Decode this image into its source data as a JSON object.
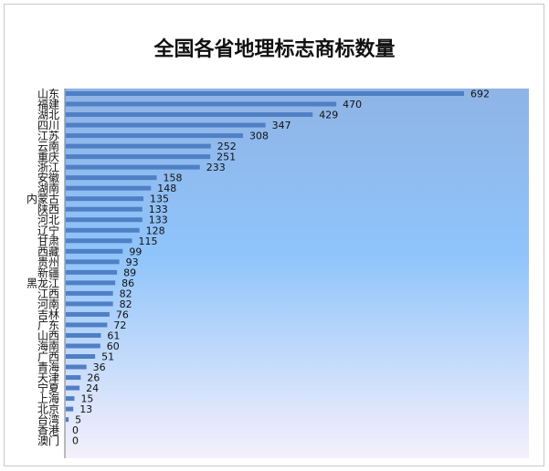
{
  "chart_data": {
    "type": "bar",
    "orientation": "horizontal",
    "title": "全国各省地理标志商标数量",
    "xlabel": "",
    "ylabel": "",
    "categories": [
      "山东",
      "福建",
      "湖北",
      "四川",
      "江苏",
      "云南",
      "重庆",
      "浙江",
      "安徽",
      "湖南",
      "内蒙古",
      "陕西",
      "河北",
      "辽宁",
      "甘肃",
      "西藏",
      "贵州",
      "新疆",
      "黑龙江",
      "江西",
      "河南",
      "吉林",
      "广东",
      "山西",
      "海南",
      "广西",
      "青海",
      "天津",
      "宁夏",
      "上海",
      "北京",
      "台湾",
      "香港",
      "澳门"
    ],
    "values": [
      692,
      470,
      429,
      347,
      308,
      252,
      251,
      233,
      158,
      148,
      135,
      133,
      133,
      128,
      115,
      99,
      93,
      89,
      86,
      82,
      82,
      76,
      72,
      61,
      60,
      51,
      36,
      26,
      24,
      15,
      13,
      5,
      0,
      0
    ],
    "xlim": [
      0,
      692
    ],
    "grid": false,
    "legend": "none",
    "colors": {
      "bar": "#4f7fc4",
      "label": "#111111",
      "plot_bg_top": "#8fb4e6",
      "plot_bg_mid": "#8fc4fb",
      "plot_bg_bottom": "#f5f0fb"
    }
  }
}
